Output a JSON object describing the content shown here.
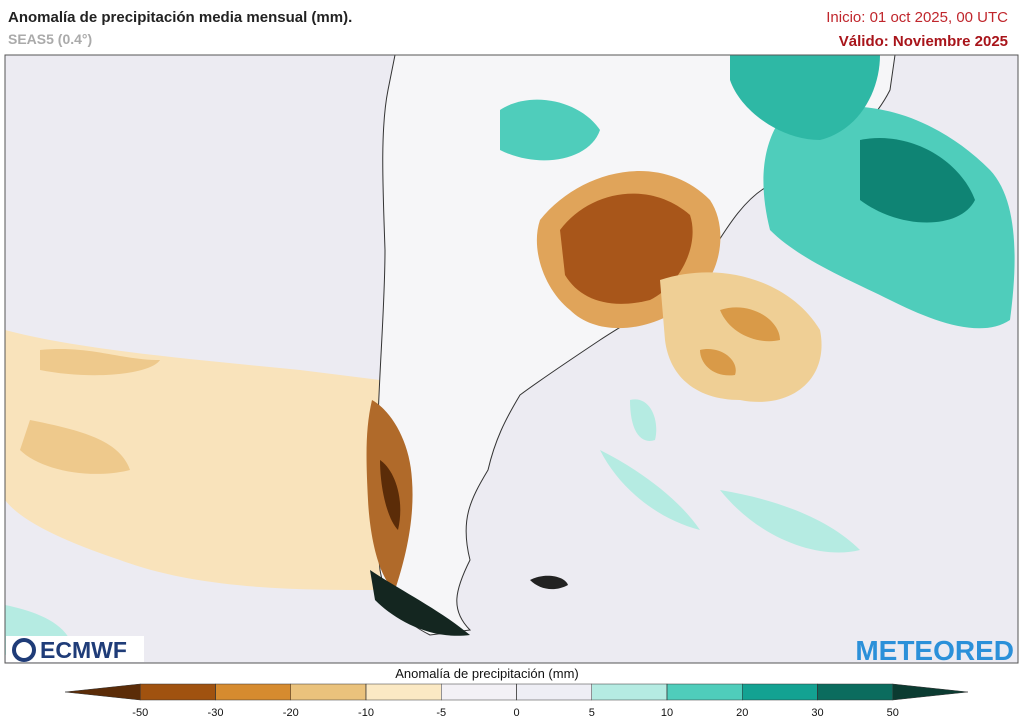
{
  "header": {
    "title": "Anomalía de precipitación media mensual (mm).",
    "subtitle": "SEAS5 (0.4°)",
    "init": "Inicio: 01 oct 2025, 00 UTC",
    "valid": "Válido: Noviembre 2025"
  },
  "logos": {
    "left": "ECMWF",
    "right": "METEORED"
  },
  "colorbar": {
    "title": "Anomalía de precipitación (mm)",
    "ticks": [
      -50,
      -30,
      -20,
      -10,
      -5,
      0,
      5,
      10,
      20,
      30,
      50
    ],
    "colors": [
      "#5b2c08",
      "#a0520f",
      "#d68b2f",
      "#eac27c",
      "#fbe9c4",
      "#f3f1f6",
      "#eeeef5",
      "#b5ebe2",
      "#4fcdbb",
      "#13a292",
      "#0b6c5e",
      "#0b3b31"
    ]
  }
}
